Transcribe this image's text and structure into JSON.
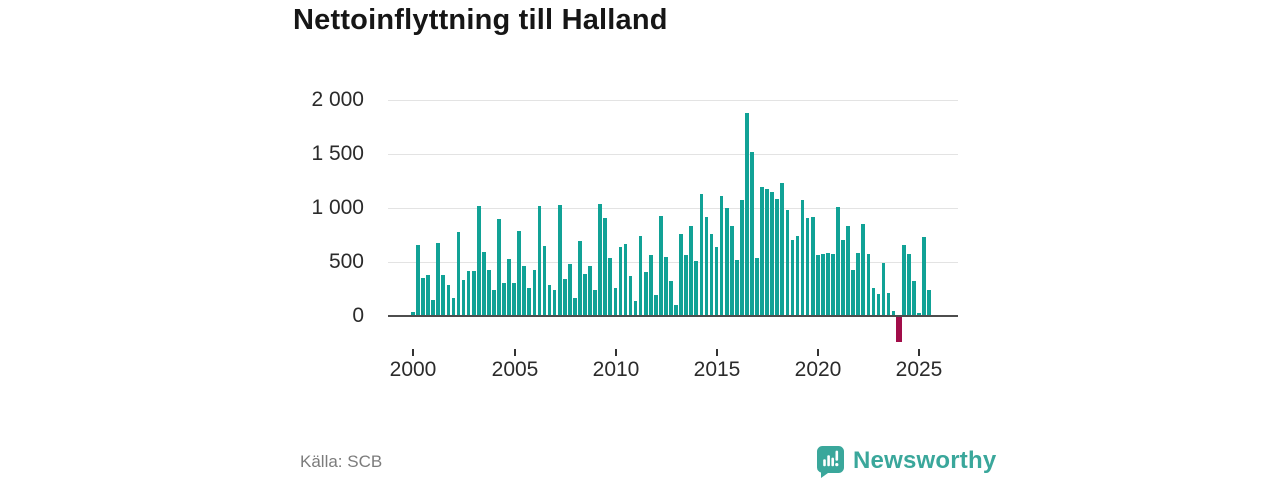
{
  "title": "Nettoinflyttning till Halland",
  "source": "Källa: SCB",
  "brand": {
    "name": "Newsworthy"
  },
  "colors": {
    "bar": "#11a296",
    "negative": "#a10d49",
    "grid": "#e3e3e3",
    "zero_axis": "#4d4d4d",
    "text": "#2b2b2b",
    "title_text": "#161616",
    "muted_text": "#7c7c7c",
    "brand_teal": "#3aa79b"
  },
  "chart_data": {
    "type": "bar",
    "title": "Nettoinflyttning till Halland",
    "xlabel": "",
    "ylabel": "",
    "frequency": "quarterly",
    "x_start": "2000-Q1",
    "x_end": "2025-Q3",
    "x_tick_labels": [
      "2000",
      "2005",
      "2010",
      "2015",
      "2020",
      "2025"
    ],
    "y_tick_labels": [
      "2 000",
      "1 500",
      "1 000",
      "500",
      "0"
    ],
    "y_ticks": [
      2000,
      1500,
      1000,
      500,
      0
    ],
    "ylim": [
      -300,
      2000
    ],
    "grid": "horizontal",
    "legend": "none",
    "negative_bar_color": "#a10d49",
    "series": [
      {
        "name": "Nettoinflyttning",
        "values": [
          40,
          660,
          355,
          380,
          150,
          675,
          380,
          290,
          165,
          780,
          330,
          415,
          415,
          1015,
          590,
          430,
          240,
          895,
          310,
          525,
          310,
          785,
          460,
          255,
          430,
          1020,
          650,
          285,
          245,
          1030,
          340,
          480,
          165,
          690,
          390,
          460,
          240,
          1035,
          905,
          540,
          255,
          635,
          670,
          370,
          135,
          740,
          410,
          565,
          195,
          925,
          550,
          320,
          100,
          760,
          565,
          835,
          505,
          1130,
          915,
          760,
          635,
          1110,
          1000,
          835,
          515,
          1070,
          1880,
          1520,
          540,
          1190,
          1175,
          1150,
          1080,
          1230,
          980,
          700,
          740,
          1075,
          905,
          915,
          565,
          570,
          585,
          570,
          1010,
          705,
          835,
          430,
          580,
          850,
          570,
          255,
          200,
          490,
          215,
          45,
          -230,
          655,
          570,
          320,
          30,
          735,
          240
        ]
      }
    ]
  }
}
